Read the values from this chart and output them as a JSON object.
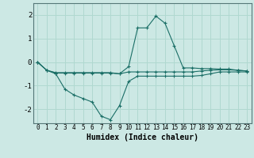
{
  "xlabel": "Humidex (Indice chaleur)",
  "background_color": "#cce8e4",
  "grid_color": "#b0d8d0",
  "line_color": "#1a6e66",
  "xlim": [
    -0.5,
    23.5
  ],
  "ylim": [
    -2.6,
    2.5
  ],
  "xticks": [
    0,
    1,
    2,
    3,
    4,
    5,
    6,
    7,
    8,
    9,
    10,
    11,
    12,
    13,
    14,
    15,
    16,
    17,
    18,
    19,
    20,
    21,
    22,
    23
  ],
  "yticks": [
    -2,
    -1,
    0,
    1,
    2
  ],
  "series1": [
    0.0,
    -0.35,
    -0.45,
    -0.45,
    -0.45,
    -0.45,
    -0.45,
    -0.45,
    -0.45,
    -0.5,
    -0.2,
    1.45,
    1.45,
    1.95,
    1.65,
    0.7,
    -0.25,
    -0.25,
    -0.28,
    -0.28,
    -0.3,
    -0.3,
    -0.35,
    -0.38
  ],
  "series2": [
    0.0,
    -0.35,
    -0.5,
    -1.15,
    -1.4,
    -1.55,
    -1.7,
    -2.3,
    -2.45,
    -1.85,
    -0.82,
    -0.6,
    -0.6,
    -0.6,
    -0.6,
    -0.6,
    -0.6,
    -0.6,
    -0.57,
    -0.5,
    -0.42,
    -0.42,
    -0.42,
    -0.42
  ],
  "series3": [
    0.0,
    -0.35,
    -0.47,
    -0.47,
    -0.47,
    -0.47,
    -0.47,
    -0.47,
    -0.47,
    -0.5,
    -0.42,
    -0.42,
    -0.42,
    -0.42,
    -0.42,
    -0.42,
    -0.42,
    -0.42,
    -0.38,
    -0.35,
    -0.33,
    -0.33,
    -0.35,
    -0.38
  ]
}
